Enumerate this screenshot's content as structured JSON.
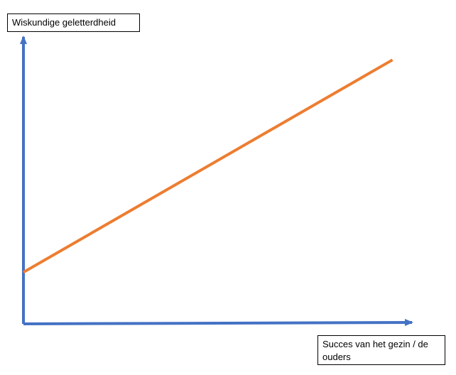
{
  "chart_data": {
    "type": "line",
    "title": "",
    "ylabel": "Wiskundige geletterdheid",
    "xlabel": "Succes van het gezin / de ouders",
    "xlim": [
      0,
      1
    ],
    "ylim": [
      0,
      1
    ],
    "grid": false,
    "axes_color": "#4472C4",
    "series": [
      {
        "color": "#ED7D31",
        "x": [
          0,
          0.95
        ],
        "y": [
          0.18,
          0.92
        ]
      }
    ]
  }
}
